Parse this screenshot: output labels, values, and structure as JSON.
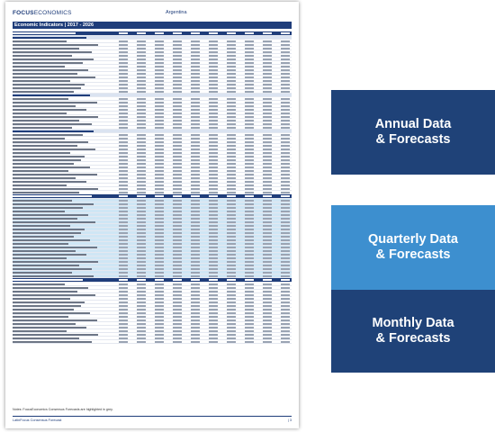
{
  "document": {
    "logo_bold": "FOCUS",
    "logo_light": "ECONOMICS",
    "country": "Argentina",
    "title": "Economic Indicators | 2017 - 2026",
    "footnote": "Notes: FocusEconomics Consensus Forecasts are highlighted in grey.",
    "footer_left": "LatinFocus Consensus Forecast",
    "footer_page": "| 3"
  },
  "banners": {
    "annual_line1": "Annual Data",
    "annual_line2": "& Forecasts",
    "quarterly_line1": "Quarterly Data",
    "quarterly_line2": "& Forecasts",
    "monthly_line1": "Monthly Data",
    "monthly_line2": "& Forecasts"
  },
  "colors": {
    "navy": "#1f4278",
    "sky": "#3d8fcf",
    "header_bar": "#1f3d7a"
  }
}
